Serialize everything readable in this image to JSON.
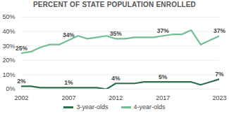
{
  "chart_data": {
    "type": "line",
    "title": "PERCENT OF STATE POPULATION ENROLLED",
    "x": [
      2002,
      2003,
      2004,
      2005,
      2006,
      2007,
      2008,
      2009,
      2010,
      2011,
      2012,
      2013,
      2014,
      2015,
      2016,
      2017,
      2018,
      2019,
      2020,
      2021,
      2022,
      2023
    ],
    "series": [
      {
        "name": "3-year-olds",
        "color": "#2e6e4e",
        "values": [
          2,
          2,
          1,
          1,
          1,
          1,
          1,
          1,
          1,
          0,
          4,
          4,
          4,
          5,
          5,
          5,
          5,
          5,
          5,
          3,
          5,
          7
        ],
        "value_labels": [
          "2%",
          null,
          null,
          null,
          null,
          "1%",
          null,
          null,
          null,
          null,
          "4%",
          null,
          null,
          null,
          null,
          "5%",
          null,
          null,
          null,
          null,
          null,
          "7%"
        ]
      },
      {
        "name": "4-year-olds",
        "color": "#72bf95",
        "values": [
          25,
          26,
          29,
          31,
          31,
          34,
          37,
          35,
          36,
          37,
          35,
          35,
          36,
          36,
          36,
          37,
          38,
          38,
          41,
          31,
          34,
          37
        ],
        "value_labels": [
          "25%",
          null,
          null,
          null,
          null,
          "34%",
          null,
          null,
          null,
          null,
          "35%",
          null,
          null,
          null,
          null,
          "37%",
          null,
          null,
          null,
          null,
          null,
          "37%"
        ]
      }
    ],
    "xlim": [
      2002,
      2023
    ],
    "xticks": [
      2002,
      2007,
      2012,
      2017,
      2023
    ],
    "ylim": [
      0,
      50
    ],
    "yticks": [
      {
        "value": 0,
        "label": "0%"
      },
      {
        "value": 10,
        "label": "10%"
      },
      {
        "value": 20,
        "label": "20%"
      },
      {
        "value": 30,
        "label": "30%"
      },
      {
        "value": 40,
        "label": "40%"
      },
      {
        "value": 50,
        "label": "50%"
      }
    ],
    "grid": true,
    "legend": "bottom"
  }
}
